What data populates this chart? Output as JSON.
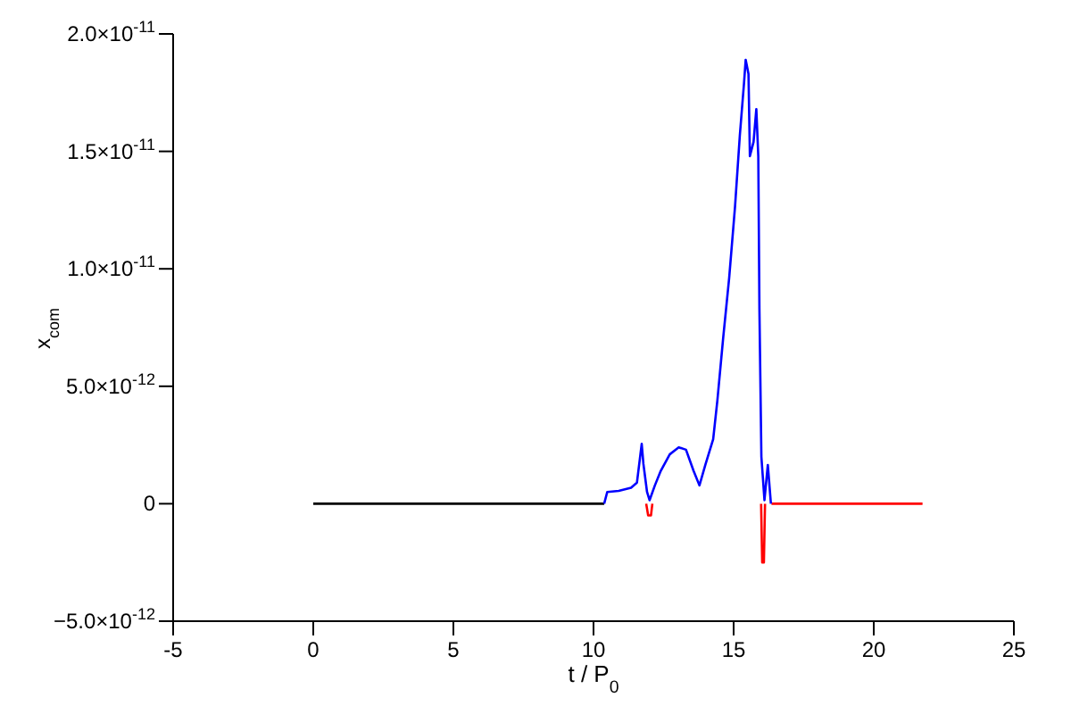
{
  "chart_data": {
    "type": "line",
    "xlabel": "t / P$_{0}$",
    "ylabel": "x$_{com}$",
    "xlim": [
      -5,
      25
    ],
    "xticks": [
      -5,
      0,
      5,
      10,
      15,
      20,
      25
    ],
    "ylim": [
      -5e-12,
      2e-11
    ],
    "yticks": [
      {
        "value": -5e-12,
        "label": "−5.0×10$^{-12}$"
      },
      {
        "value": 0,
        "label": "0"
      },
      {
        "value": 5e-12,
        "label": "5.0×10$^{-12}$"
      },
      {
        "value": 1e-11,
        "label": "1.0×10$^{-11}$"
      },
      {
        "value": 1.5e-11,
        "label": "1.5×10$^{-11}$"
      },
      {
        "value": 2e-11,
        "label": "2.0×10$^{-11}$"
      }
    ],
    "marker": "none",
    "line_style": "solid",
    "series": [
      {
        "color": "#000000",
        "x": [
          0,
          10.38
        ],
        "values": [
          0,
          0
        ]
      },
      {
        "color": "#ff0000",
        "x": [
          11.88,
          11.95,
          12.05,
          12.1,
          12.12,
          15.98,
          16.02,
          16.08,
          16.12,
          16.2,
          16.35,
          21.74
        ],
        "values": [
          0,
          -5e-13,
          -5e-13,
          0,
          null,
          0,
          -2.5e-12,
          -2.5e-12,
          0,
          null,
          0,
          0
        ]
      },
      {
        "color": "#0000ff",
        "x": [
          10.38,
          10.49,
          10.9,
          11.34,
          11.55,
          11.72,
          11.78,
          11.91,
          12.0,
          12.19,
          12.4,
          12.72,
          13.04,
          13.3,
          13.57,
          13.78,
          13.99,
          14.27,
          14.42,
          14.63,
          14.84,
          15.05,
          15.22,
          15.37,
          15.43,
          15.53,
          15.58,
          15.71,
          15.81,
          15.88,
          15.92,
          15.99,
          16.1,
          16.22,
          16.33
        ],
        "values": [
          0,
          5e-13,
          5.5e-13,
          6.8e-13,
          9e-13,
          2.55e-12,
          1.7e-12,
          5e-13,
          1.5e-13,
          7.8e-13,
          1.4e-12,
          2.1e-12,
          2.4e-12,
          2.3e-12,
          1.4e-12,
          7.8e-13,
          1.65e-12,
          2.75e-12,
          4.4e-12,
          7.1e-12,
          9.6e-12,
          1.265e-11,
          1.566e-11,
          1.79e-11,
          1.89e-11,
          1.83e-11,
          1.48e-11,
          1.54e-11,
          1.68e-11,
          1.48e-11,
          8.3e-12,
          2e-12,
          1.5e-13,
          1.65e-12,
          0
        ]
      }
    ]
  }
}
